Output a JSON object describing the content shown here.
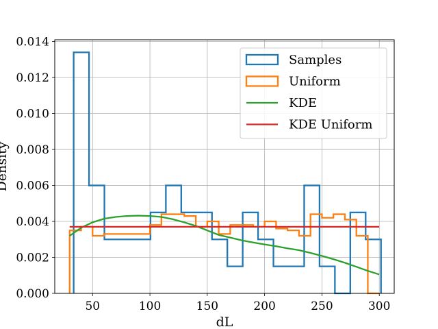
{
  "chart_data": {
    "type": "histogram",
    "xlabel": "dL",
    "ylabel": "Density",
    "xlim": [
      17,
      313
    ],
    "ylim": [
      0,
      0.0141
    ],
    "xticks": [
      50,
      100,
      150,
      200,
      250,
      300
    ],
    "yticks": [
      0.0,
      0.002,
      0.004,
      0.006,
      0.008,
      0.01,
      0.012,
      0.014
    ],
    "ytick_labels": [
      "0.000",
      "0.002",
      "0.004",
      "0.006",
      "0.008",
      "0.010",
      "0.012",
      "0.014"
    ],
    "grid": true,
    "legend_position": "top-right",
    "series": [
      {
        "name": "Samples",
        "kind": "step-histogram",
        "color": "#1f77b4",
        "edges": [
          33.5,
          46.9,
          60.3,
          73.7,
          87.1,
          100.5,
          113.9,
          127.3,
          140.7,
          154.1,
          167.5,
          180.9,
          194.3,
          207.7,
          221.1,
          234.5,
          247.9,
          261.3,
          274.7,
          288.1,
          301.5
        ],
        "values": [
          0.0134,
          0.006,
          0.003,
          0.003,
          0.003,
          0.0045,
          0.006,
          0.0045,
          0.0045,
          0.003,
          0.0015,
          0.0045,
          0.003,
          0.0015,
          0.0015,
          0.006,
          0.0015,
          0.0,
          0.0045,
          0.003
        ]
      },
      {
        "name": "Uniform",
        "kind": "step-histogram",
        "color": "#ff7f0e",
        "edges": [
          30,
          40,
          50,
          60,
          70,
          80,
          90,
          100,
          110,
          120,
          130,
          140,
          150,
          160,
          170,
          180,
          190,
          200,
          210,
          220,
          230,
          240,
          250,
          260,
          270,
          280,
          290,
          300
        ],
        "values": [
          0.0035,
          0.0037,
          0.0032,
          0.0033,
          0.0033,
          0.0033,
          0.0033,
          0.0038,
          0.0044,
          0.0044,
          0.0043,
          0.0037,
          0.004,
          0.0033,
          0.0038,
          0.0038,
          0.0037,
          0.004,
          0.0036,
          0.0035,
          0.0032,
          0.0044,
          0.0042,
          0.0044,
          0.0041,
          0.0032,
          0.0
        ]
      },
      {
        "name": "KDE",
        "kind": "line",
        "color": "#2ca02c",
        "x": [
          30,
          40,
          50,
          60,
          70,
          80,
          90,
          100,
          110,
          120,
          130,
          140,
          150,
          160,
          170,
          180,
          190,
          200,
          210,
          220,
          230,
          240,
          250,
          260,
          270,
          280,
          290,
          300
        ],
        "y": [
          0.0032,
          0.00365,
          0.00395,
          0.00415,
          0.00425,
          0.0043,
          0.00432,
          0.0043,
          0.00425,
          0.00412,
          0.00395,
          0.00375,
          0.0035,
          0.00325,
          0.0031,
          0.00295,
          0.00283,
          0.00272,
          0.00262,
          0.0025,
          0.0024,
          0.00225,
          0.00208,
          0.0019,
          0.0017,
          0.00148,
          0.00125,
          0.00105
        ]
      },
      {
        "name": "KDE Uniform",
        "kind": "line",
        "color": "#d62728",
        "x": [
          30,
          300
        ],
        "y": [
          0.0037,
          0.0037
        ]
      }
    ]
  }
}
